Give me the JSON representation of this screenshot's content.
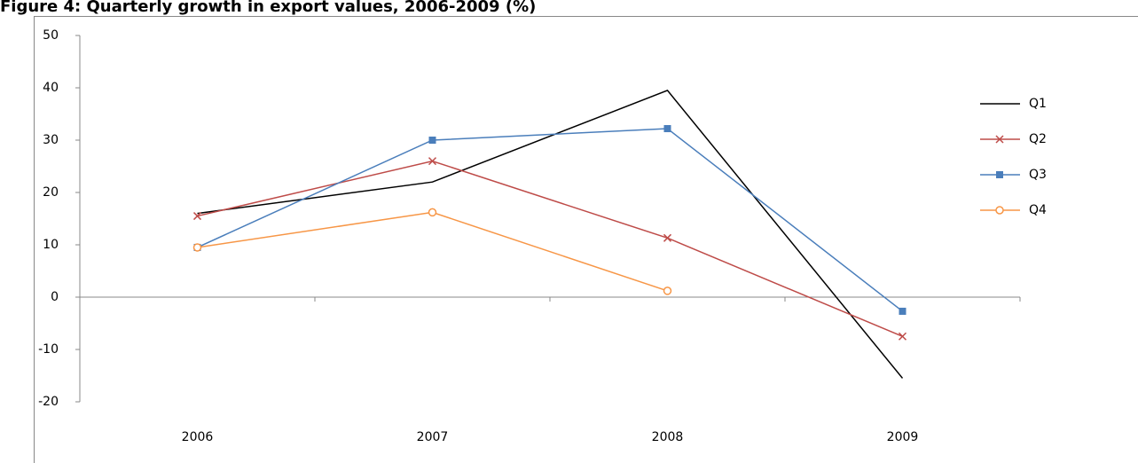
{
  "chart_data": {
    "type": "line",
    "title": "Figure 4: Quarterly growth in export values, 2006-2009 (%)",
    "categories": [
      "2006",
      "2007",
      "2008",
      "2009"
    ],
    "series": [
      {
        "name": "Q1",
        "color": "#000000",
        "marker": "none",
        "values": [
          16,
          22,
          39.5,
          -15.5
        ]
      },
      {
        "name": "Q2",
        "color": "#be4b48",
        "marker": "x",
        "values": [
          15.5,
          26,
          11.3,
          -7.5
        ]
      },
      {
        "name": "Q3",
        "color": "#4a7ebb",
        "marker": "square",
        "values": [
          9.5,
          30,
          32.2,
          -2.7
        ]
      },
      {
        "name": "Q4",
        "color": "#f79646",
        "marker": "circle",
        "values": [
          9.5,
          16.2,
          1.2,
          null
        ]
      }
    ],
    "ylim": [
      -20,
      50
    ],
    "yticks": [
      -20,
      -10,
      0,
      10,
      20,
      30,
      40,
      50
    ],
    "grid": false,
    "legend": "right"
  }
}
